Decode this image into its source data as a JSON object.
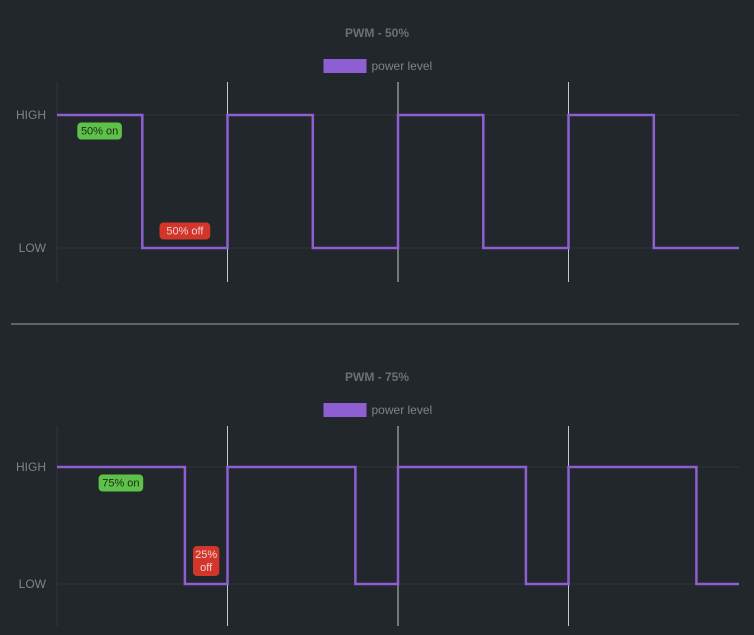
{
  "colors": {
    "background": "#22272b",
    "series": "#8e5fd3",
    "text": "#7f8487",
    "title": "#6b7075",
    "axis_line": "#30363a",
    "cycle_marker": "#c4c9c9",
    "divider": "#9aa4a4",
    "on_badge": "#5dc14a",
    "on_badge_text": "#1e2a12",
    "off_badge": "#d2352a",
    "off_badge_text": "#f3d0cc"
  },
  "chart_data": [
    {
      "type": "line",
      "step": true,
      "title": "PWM - 50%",
      "legend": {
        "label": "power level",
        "placement": "top-center"
      },
      "y_categories": [
        "LOW",
        "HIGH"
      ],
      "x_range": [
        0,
        4
      ],
      "cycle_markers": [
        1,
        2,
        3
      ],
      "series": [
        {
          "name": "power level",
          "points": [
            [
              0,
              1
            ],
            [
              0.5,
              1
            ],
            [
              0.5,
              0
            ],
            [
              1,
              0
            ],
            [
              1,
              1
            ],
            [
              1.5,
              1
            ],
            [
              1.5,
              0
            ],
            [
              2,
              0
            ],
            [
              2,
              1
            ],
            [
              2.5,
              1
            ],
            [
              2.5,
              0
            ],
            [
              3,
              0
            ],
            [
              3,
              1
            ],
            [
              3.5,
              1
            ],
            [
              3.5,
              0
            ],
            [
              4,
              0
            ]
          ]
        }
      ],
      "annotations": [
        {
          "kind": "on",
          "lines": [
            "50% on"
          ],
          "x": 0.25,
          "level": "HIGH"
        },
        {
          "kind": "off",
          "lines": [
            "50% off"
          ],
          "x": 0.75,
          "level": "LOW"
        }
      ]
    },
    {
      "type": "line",
      "step": true,
      "title": "PWM - 75%",
      "legend": {
        "label": "power level",
        "placement": "top-center"
      },
      "y_categories": [
        "LOW",
        "HIGH"
      ],
      "x_range": [
        0,
        4
      ],
      "cycle_markers": [
        1,
        2,
        3
      ],
      "series": [
        {
          "name": "power level",
          "points": [
            [
              0,
              1
            ],
            [
              0.75,
              1
            ],
            [
              0.75,
              0
            ],
            [
              1,
              0
            ],
            [
              1,
              1
            ],
            [
              1.75,
              1
            ],
            [
              1.75,
              0
            ],
            [
              2,
              0
            ],
            [
              2,
              1
            ],
            [
              2.75,
              1
            ],
            [
              2.75,
              0
            ],
            [
              3,
              0
            ],
            [
              3,
              1
            ],
            [
              3.75,
              1
            ],
            [
              3.75,
              0
            ],
            [
              4,
              0
            ]
          ]
        }
      ],
      "annotations": [
        {
          "kind": "on",
          "lines": [
            "75% on"
          ],
          "x": 0.375,
          "level": "HIGH"
        },
        {
          "kind": "off",
          "lines": [
            "25%",
            "off"
          ],
          "x": 0.875,
          "level": "LOW"
        }
      ]
    }
  ]
}
